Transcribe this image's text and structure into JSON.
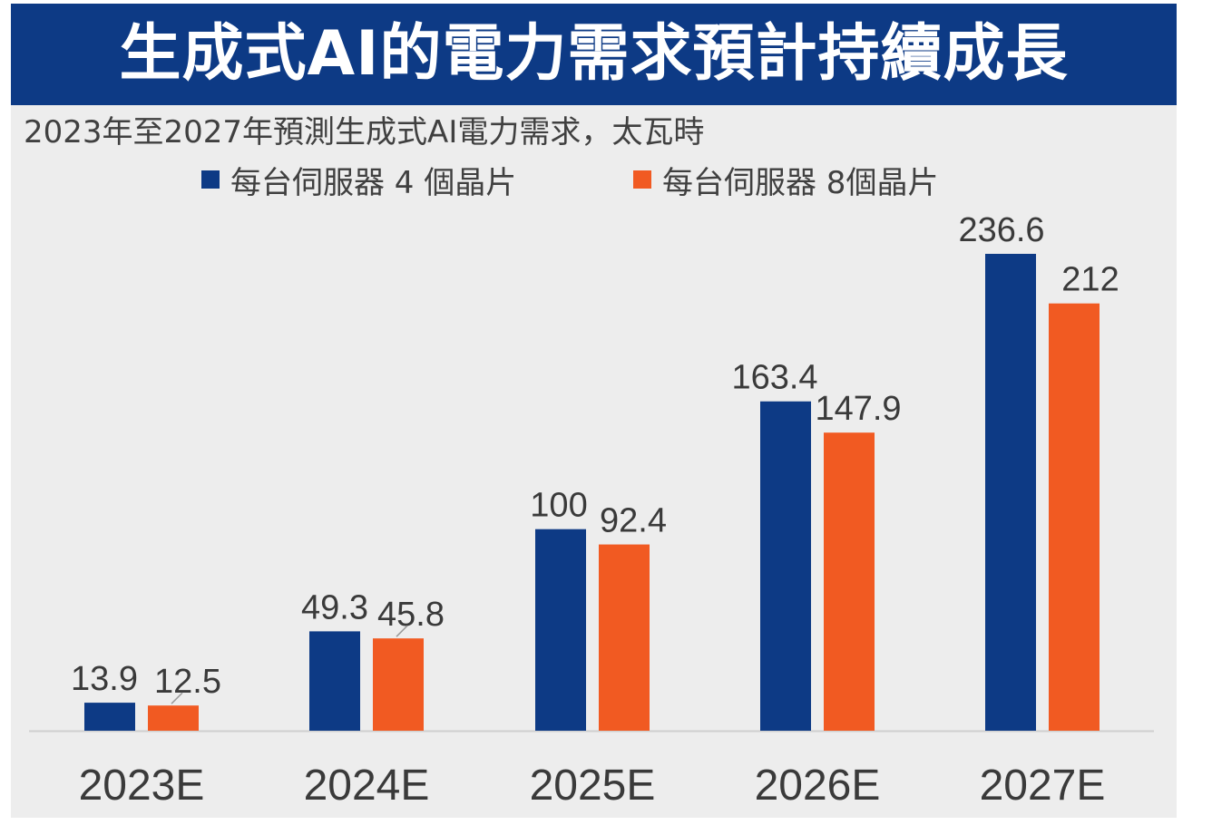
{
  "banner": {
    "title": "生成式AI的電力需求預計持續成長"
  },
  "chart_data": {
    "type": "bar",
    "subtitle": "2023年至2027年預測生成式AI電力需求，太瓦時",
    "categories": [
      "2023E",
      "2024E",
      "2025E",
      "2026E",
      "2027E"
    ],
    "series": [
      {
        "name": "每台伺服器 4 個晶片",
        "color": "#0d3a85",
        "values": [
          13.9,
          49.3,
          100,
          163.4,
          236.6
        ],
        "labels": [
          "13.9",
          "49.3",
          "100",
          "163.4",
          "236.6"
        ]
      },
      {
        "name": "每台伺服器 8個晶片",
        "color": "#f15a22",
        "values": [
          12.5,
          45.8,
          92.4,
          147.9,
          212
        ],
        "labels": [
          "12.5",
          "45.8",
          "92.4",
          "147.9",
          "212"
        ]
      }
    ],
    "ylim": [
      0,
      236.6
    ],
    "grid": false,
    "legend_position": "top"
  }
}
